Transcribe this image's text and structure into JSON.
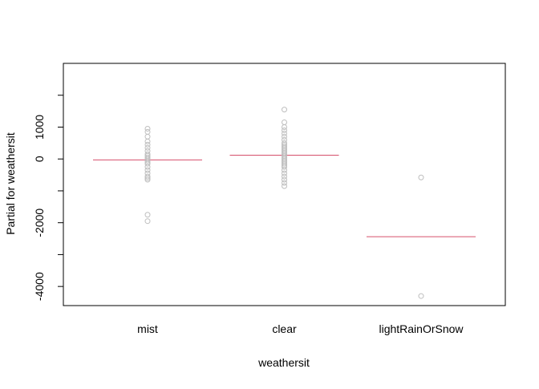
{
  "chart_data": {
    "type": "scatter",
    "title": "",
    "xlabel": "weathersit",
    "ylabel": "Partial for weathersit",
    "categories": [
      "mist",
      "clear",
      "lightRainOrSnow"
    ],
    "ylim": [
      -4600,
      3000
    ],
    "y_ticks": [
      -4000,
      -2000,
      0,
      1000
    ],
    "y_tick_labels": [
      "-4000",
      "-2000",
      "0",
      "1000"
    ],
    "y_minor_ticks": [
      -3000,
      -1000,
      2000
    ],
    "partial_effect": [
      -30,
      120,
      -2440
    ],
    "points": [
      {
        "category": "mist",
        "values": [
          950,
          850,
          700,
          550,
          450,
          350,
          250,
          150,
          100,
          50,
          0,
          -50,
          -100,
          -150,
          -250,
          -350,
          -450,
          -550,
          -600,
          -650,
          -1750,
          -1950
        ]
      },
      {
        "category": "clear",
        "values": [
          1550,
          1150,
          1000,
          900,
          800,
          700,
          600,
          500,
          450,
          400,
          350,
          300,
          250,
          200,
          150,
          100,
          50,
          0,
          -50,
          -100,
          -150,
          -200,
          -250,
          -350,
          -450,
          -550,
          -650,
          -750,
          -850
        ]
      },
      {
        "category": "lightRainOrSnow",
        "values": [
          -580,
          -4300
        ]
      }
    ],
    "colors": {
      "points": "#bebebe",
      "effect_line": "#d64f6b",
      "axis": "#000000"
    },
    "grid": false,
    "legend": "none"
  }
}
